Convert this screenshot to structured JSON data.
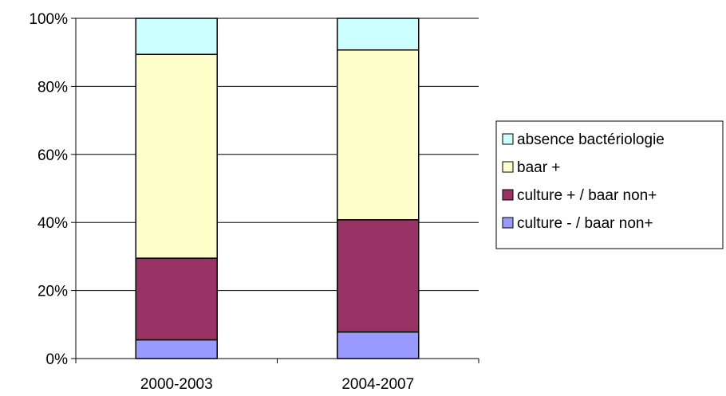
{
  "chart_data": {
    "type": "bar",
    "stacked": true,
    "percent": true,
    "title": "",
    "xlabel": "",
    "ylabel": "",
    "categories": [
      "2000-2003",
      "2004-2007"
    ],
    "ylim": [
      0,
      100
    ],
    "yticks": [
      "0%",
      "20%",
      "40%",
      "60%",
      "80%",
      "100%"
    ],
    "ytick_values": [
      0,
      20,
      40,
      60,
      80,
      100
    ],
    "grid": true,
    "legend_position": "right",
    "series": [
      {
        "name": "culture - / baar non+",
        "values": [
          5.5,
          7.8
        ],
        "color": "#9999ff"
      },
      {
        "name": "culture + / baar non+",
        "values": [
          24.0,
          33.0
        ],
        "color": "#993366"
      },
      {
        "name": "baar  +",
        "values": [
          59.9,
          49.9
        ],
        "color": "#ffffcc"
      },
      {
        "name": "absence bactériologie",
        "values": [
          10.6,
          9.3
        ],
        "color": "#ccffff"
      }
    ],
    "legend_order": [
      3,
      2,
      1,
      0
    ]
  }
}
